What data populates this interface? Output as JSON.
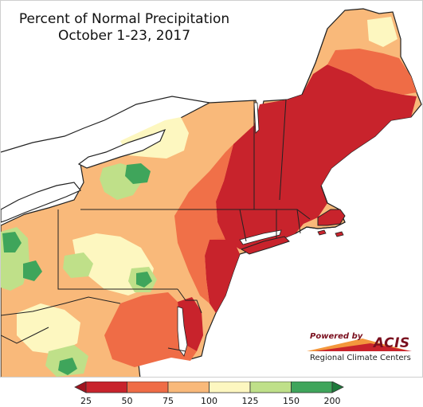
{
  "title": {
    "line1": "Percent of Normal Precipitation",
    "line2": "October 1-23, 2017"
  },
  "logo": {
    "powered_by": "Powered by",
    "name": "ACIS",
    "tagline": "Regional Climate Centers"
  },
  "legend": {
    "tick_labels": [
      "25",
      "50",
      "75",
      "100",
      "125",
      "150",
      "200"
    ],
    "bins": [
      {
        "range": "25-50",
        "color": "#c8232c"
      },
      {
        "range": "50-75",
        "color": "#ef6c46"
      },
      {
        "range": "75-100",
        "color": "#f9b97a"
      },
      {
        "range": "100-125",
        "color": "#fdf7c0"
      },
      {
        "range": "125-150",
        "color": "#bfe089"
      },
      {
        "range": "150-200",
        "color": "#3fa55b"
      }
    ],
    "below_color": "#a1131f",
    "above_color": "#1e7a3b"
  },
  "map": {
    "region": "Northeast United States",
    "colors": {
      "land_default": "#f9b97a",
      "water": "#ffffff",
      "border": "#222222",
      "county_line": "#a0866a"
    }
  }
}
